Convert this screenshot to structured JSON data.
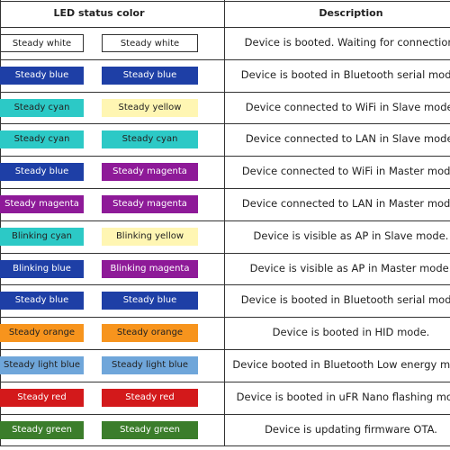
{
  "table": {
    "header": [
      "LED status color",
      "Description"
    ],
    "rows": [
      {
        "leds": [
          {
            "label": "Steady white",
            "color": "#ffffff"
          },
          {
            "label": "Steady white",
            "color": "#ffffff"
          }
        ],
        "description": "Device is booted. Waiting for connection."
      },
      {
        "leds": [
          {
            "label": "Steady blue",
            "color": "#1e3fa6"
          },
          {
            "label": "Steady blue",
            "color": "#1e3fa6"
          }
        ],
        "description": "Device is booted in Bluetooth serial mode."
      },
      {
        "leds": [
          {
            "label": "Steady cyan",
            "color": "#2cc9c6"
          },
          {
            "label": "Steady yellow",
            "color": "#fff6b3"
          }
        ],
        "description": "Device connected to WiFi in Slave mode."
      },
      {
        "leds": [
          {
            "label": "Steady cyan",
            "color": "#2cc9c6"
          },
          {
            "label": "Steady cyan",
            "color": "#2cc9c6"
          }
        ],
        "description": "Device connected to LAN in Slave mode."
      },
      {
        "leds": [
          {
            "label": "Steady blue",
            "color": "#1e3fa6"
          },
          {
            "label": "Steady magenta",
            "color": "#8e1a98"
          }
        ],
        "description": "Device connected to WiFi in Master mode."
      },
      {
        "leds": [
          {
            "label": "Steady magenta",
            "color": "#8e1a98"
          },
          {
            "label": "Steady magenta",
            "color": "#8e1a98"
          }
        ],
        "description": "Device connected to LAN in Master mode."
      },
      {
        "leds": [
          {
            "label": "Blinking cyan",
            "color": "#2cc9c6"
          },
          {
            "label": "Blinking yellow",
            "color": "#fff6b3"
          }
        ],
        "description": "Device is visible as AP in Slave mode."
      },
      {
        "leds": [
          {
            "label": "Blinking blue",
            "color": "#1e3fa6"
          },
          {
            "label": "Blinking magenta",
            "color": "#8e1a98"
          }
        ],
        "description": "Device is visible as AP in Master mode."
      },
      {
        "leds": [
          {
            "label": "Steady blue",
            "color": "#1e3fa6"
          },
          {
            "label": "Steady blue",
            "color": "#1e3fa6"
          }
        ],
        "description": "Device is booted in Bluetooth serial mode."
      },
      {
        "leds": [
          {
            "label": "Steady orange",
            "color": "#f7941d"
          },
          {
            "label": "Steady orange",
            "color": "#f7941d"
          }
        ],
        "description": "Device is booted in HID mode."
      },
      {
        "leds": [
          {
            "label": "Steady light blue",
            "color": "#6fa6da"
          },
          {
            "label": "Steady light blue",
            "color": "#6fa6da"
          }
        ],
        "description": "Device booted in Bluetooth Low energy mode"
      },
      {
        "leds": [
          {
            "label": "Steady red",
            "color": "#d3191b"
          },
          {
            "label": "Steady red",
            "color": "#d3191b"
          }
        ],
        "description": "Device is booted in uFR Nano flashing mode"
      },
      {
        "leds": [
          {
            "label": "Steady green",
            "color": "#3b7d2b"
          },
          {
            "label": "Steady green",
            "color": "#3b7d2b"
          }
        ],
        "description": "Device is updating firmware OTA."
      }
    ]
  }
}
